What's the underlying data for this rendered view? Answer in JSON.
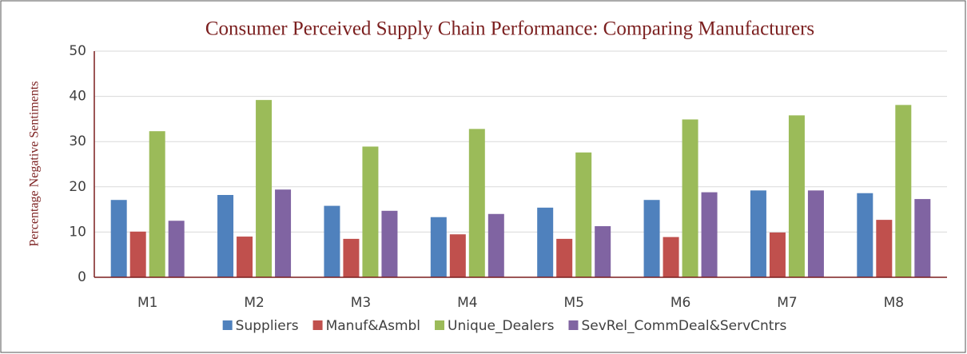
{
  "chart_data": {
    "type": "bar",
    "title": "Consumer Perceived Supply Chain Performance: Comparing Manufacturers",
    "y_label": "Percentage Negative Sentiments",
    "categories": [
      "M1",
      "M2",
      "M3",
      "M4",
      "M5",
      "M6",
      "M7",
      "M8"
    ],
    "series": [
      {
        "name": "Suppliers",
        "color": "#4f81bd",
        "values": [
          17.1,
          18.2,
          15.8,
          13.3,
          15.4,
          17.1,
          19.2,
          18.6
        ]
      },
      {
        "name": "Manuf&Asmbl",
        "color": "#c0504d",
        "values": [
          10.1,
          9.0,
          8.5,
          9.5,
          8.5,
          8.9,
          9.9,
          12.7
        ]
      },
      {
        "name": "Unique_Dealers",
        "color": "#9bbb59",
        "values": [
          32.3,
          39.2,
          28.9,
          32.8,
          27.6,
          34.9,
          35.8,
          38.1
        ]
      },
      {
        "name": "SevRel_CommDeal&ServCntrs",
        "color": "#8064a2",
        "values": [
          12.5,
          19.4,
          14.7,
          14.0,
          11.3,
          18.8,
          19.2,
          17.3
        ]
      }
    ],
    "ylim": [
      0,
      50
    ],
    "yticks": [
      0,
      10,
      20,
      30,
      40,
      50
    ],
    "grid": true,
    "legend": "bottom"
  }
}
